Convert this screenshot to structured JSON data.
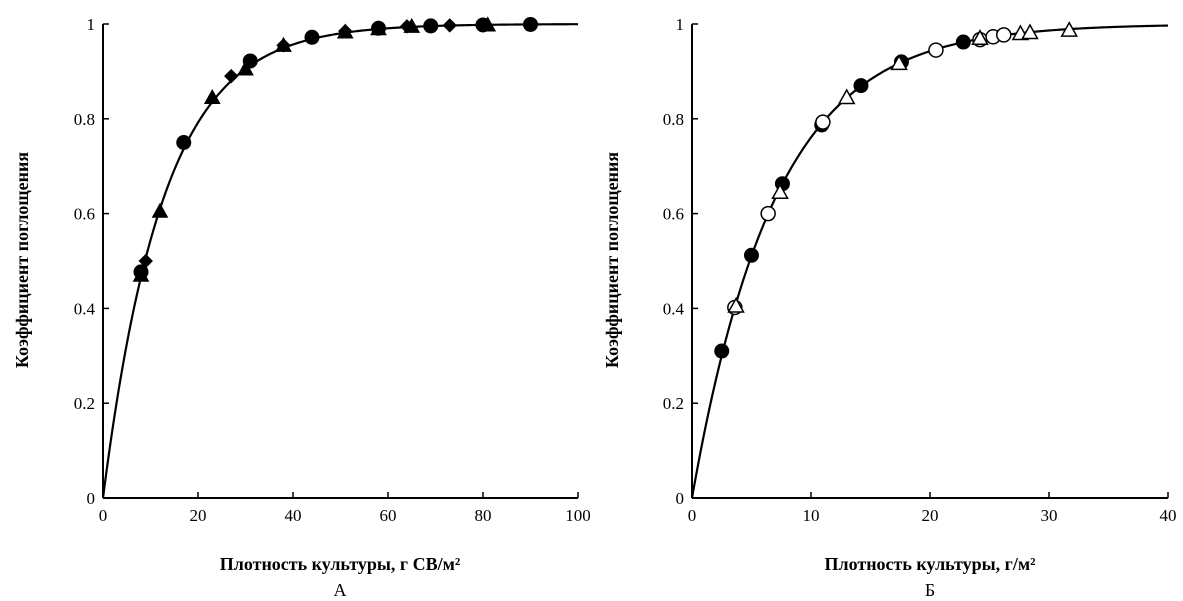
{
  "chart_data": [
    {
      "type": "scatter",
      "panel_label": "А",
      "xlabel": "Плотность культуры, г СВ/м²",
      "ylabel": "Коэффициент поглощения",
      "xlim": [
        0,
        100
      ],
      "ylim": [
        0,
        1
      ],
      "xticks": [
        "0",
        "20",
        "40",
        "60",
        "80",
        "100"
      ],
      "yticks": [
        "0",
        "0.2",
        "0.4",
        "0.6",
        "0.8",
        "1"
      ],
      "grid": false,
      "curve": {
        "type": "line",
        "k": 0.0785,
        "description_x": [
          0,
          100
        ]
      },
      "series": [
        {
          "marker": "filled-circle",
          "points": [
            [
              8,
              0.477
            ],
            [
              17,
              0.75
            ],
            [
              31,
              0.922
            ],
            [
              44,
              0.972
            ],
            [
              58,
              0.991
            ],
            [
              69,
              0.996
            ],
            [
              80,
              0.998
            ],
            [
              90,
              0.999
            ]
          ]
        },
        {
          "marker": "filled-triangle",
          "points": [
            [
              8,
              0.47
            ],
            [
              12,
              0.605
            ],
            [
              23,
              0.845
            ],
            [
              30,
              0.905
            ],
            [
              38,
              0.955
            ],
            [
              51,
              0.983
            ],
            [
              58,
              0.99
            ],
            [
              65,
              0.995
            ],
            [
              81,
              0.998
            ]
          ]
        },
        {
          "marker": "filled-diamond",
          "points": [
            [
              9,
              0.5
            ],
            [
              27,
              0.89
            ],
            [
              38,
              0.955
            ],
            [
              51,
              0.985
            ],
            [
              64,
              0.995
            ],
            [
              73,
              0.997
            ],
            [
              80,
              0.999
            ]
          ]
        }
      ]
    },
    {
      "type": "scatter",
      "panel_label": "Б",
      "xlabel": "Плотность культуры, г/м²",
      "ylabel": "Коэффициент поглощения",
      "xlim": [
        0,
        40
      ],
      "ylim": [
        0,
        1
      ],
      "xticks": [
        "0",
        "10",
        "20",
        "30",
        "40"
      ],
      "yticks": [
        "0",
        "0.2",
        "0.4",
        "0.6",
        "0.8",
        "1"
      ],
      "grid": false,
      "curve": {
        "type": "line",
        "k": 0.143,
        "description_x": [
          0,
          40
        ]
      },
      "series": [
        {
          "marker": "filled-circle",
          "points": [
            [
              2.5,
              0.31
            ],
            [
              5,
              0.512
            ],
            [
              7.6,
              0.663
            ],
            [
              10.9,
              0.787
            ],
            [
              14.2,
              0.87
            ],
            [
              17.6,
              0.92
            ],
            [
              22.8,
              0.962
            ]
          ]
        },
        {
          "marker": "open-circle",
          "points": [
            [
              3.6,
              0.402
            ],
            [
              6.4,
              0.6
            ],
            [
              11,
              0.793
            ],
            [
              20.5,
              0.945
            ],
            [
              24.2,
              0.967
            ],
            [
              25.3,
              0.973
            ],
            [
              26.2,
              0.977
            ]
          ]
        },
        {
          "marker": "open-triangle",
          "points": [
            [
              3.7,
              0.405
            ],
            [
              7.4,
              0.645
            ],
            [
              13,
              0.845
            ],
            [
              17.4,
              0.917
            ],
            [
              24.2,
              0.97
            ],
            [
              27.6,
              0.98
            ],
            [
              28.4,
              0.982
            ],
            [
              31.7,
              0.987
            ]
          ]
        }
      ]
    }
  ]
}
